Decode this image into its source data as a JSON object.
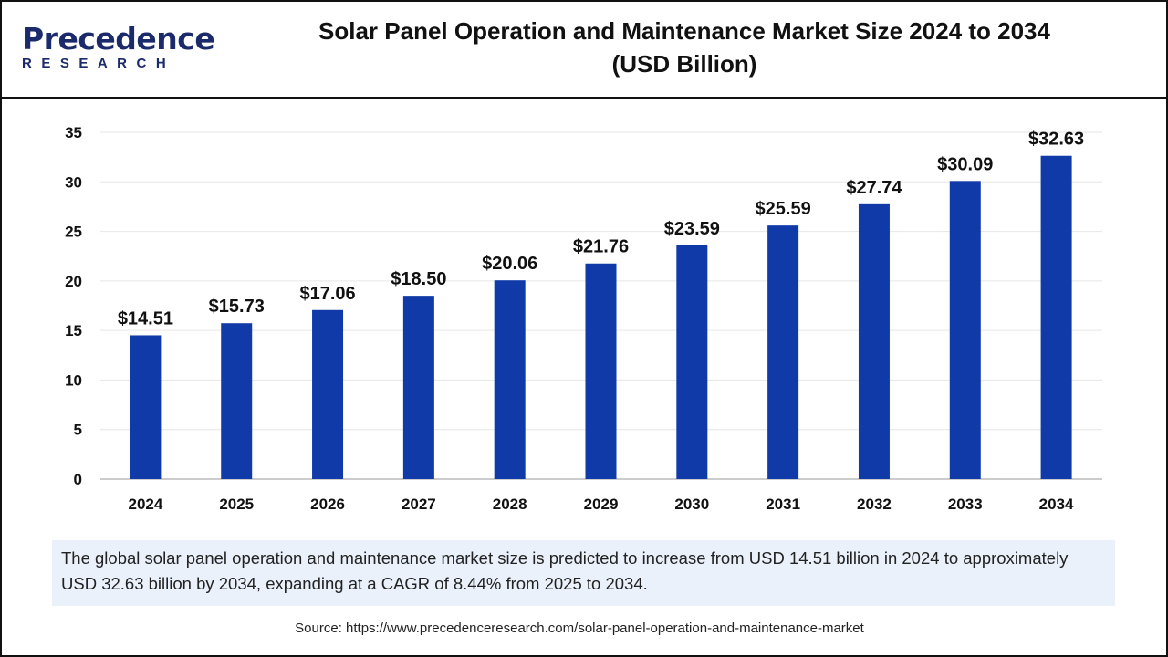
{
  "logo": {
    "line1": "Precedence",
    "line2": "RESEARCH"
  },
  "title": "Solar Panel Operation and Maintenance Market Size 2024 to 2034",
  "subtitle": "(USD Billion)",
  "colors": {
    "bar": "#0f3aa8",
    "grid": "#e6e6e6",
    "description_bg": "#eaf1fb"
  },
  "chart_data": {
    "type": "bar",
    "title": "Solar Panel Operation and Maintenance Market Size 2024 to 2034 (USD Billion)",
    "categories": [
      "2024",
      "2025",
      "2026",
      "2027",
      "2028",
      "2029",
      "2030",
      "2031",
      "2032",
      "2033",
      "2034"
    ],
    "values": [
      14.51,
      15.73,
      17.06,
      18.5,
      20.06,
      21.76,
      23.59,
      25.59,
      27.74,
      30.09,
      32.63
    ],
    "data_labels": [
      "$14.51",
      "$15.73",
      "$17.06",
      "$18.50",
      "$20.06",
      "$21.76",
      "$23.59",
      "$25.59",
      "$27.74",
      "$30.09",
      "$32.63"
    ],
    "ylim": [
      0,
      35
    ],
    "yticks": [
      0,
      5,
      10,
      15,
      20,
      25,
      30,
      35
    ],
    "grid": true,
    "xlabel": "",
    "ylabel": ""
  },
  "description": "The global solar panel operation and maintenance market size is predicted to increase from USD 14.51 billion in 2024 to approximately USD 32.63 billion by 2034, expanding at a CAGR of 8.44% from 2025 to 2034.",
  "source": "Source: https://www.precedenceresearch.com/solar-panel-operation-and-maintenance-market"
}
